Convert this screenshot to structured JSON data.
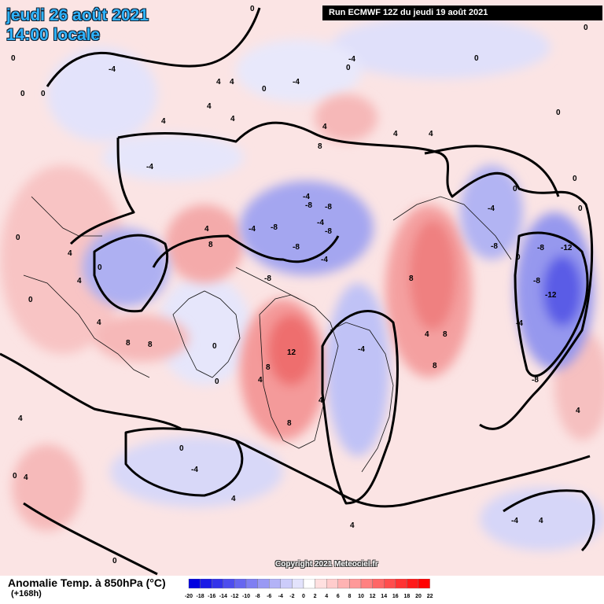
{
  "title": {
    "date": "jeudi 26 août 2021",
    "time": "14:00 locale"
  },
  "run_info": "Run ECMWF 12Z du jeudi 19 août 2021",
  "copyright": "Copyright 2021 Meteociel.fr",
  "legend": {
    "label": "Anomalie Temp. à 850hPa (°C)",
    "sublabel": "(+168h)",
    "ticks": [
      "-20",
      "-18",
      "-16",
      "-14",
      "-12",
      "-10",
      "-8",
      "-6",
      "-4",
      "-2",
      "0",
      "2",
      "4",
      "6",
      "8",
      "10",
      "12",
      "14",
      "16",
      "18",
      "20",
      "22"
    ],
    "colors": [
      "#0000e0",
      "#1a1ae6",
      "#3333ea",
      "#4d4dee",
      "#6666f0",
      "#7f7ff2",
      "#9999f4",
      "#b3b3f7",
      "#ccccfa",
      "#e3e3fc",
      "#ffffff",
      "#ffe0e0",
      "#ffcccc",
      "#ffb3b3",
      "#ff9999",
      "#ff8080",
      "#ff6666",
      "#ff4d4d",
      "#ff3333",
      "#ff1a1a",
      "#ff0000"
    ]
  },
  "map": {
    "value_labels": [
      "0",
      "4",
      "8",
      "12",
      "-4",
      "-8",
      "-12"
    ]
  }
}
